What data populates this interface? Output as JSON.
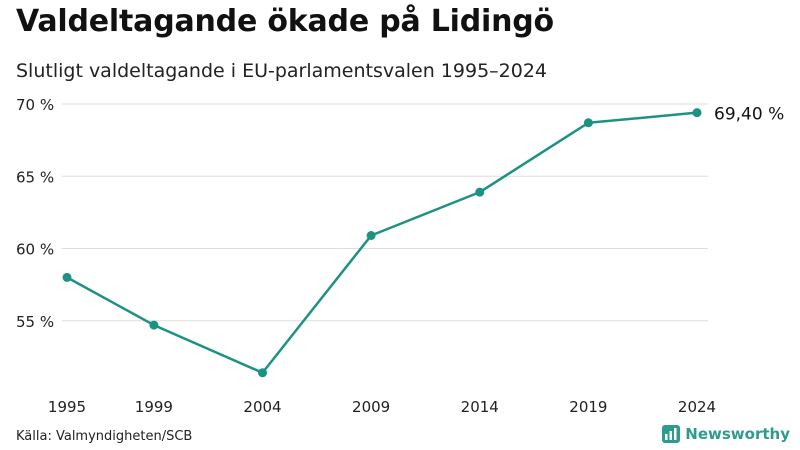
{
  "title": "Valdeltagande ökade på Lidingö",
  "subtitle": "Slutligt valdeltagande i EU-parlamentsvalen 1995–2024",
  "source": "Källa: Valmyndigheten/SCB",
  "brand": {
    "name": "Newsworthy",
    "icon": "newsworthy-logo-icon"
  },
  "colors": {
    "line": "#1d9282",
    "grid": "#dddddd",
    "brand": "#2e9c8c"
  },
  "chart_data": {
    "type": "line",
    "title": "Valdeltagande ökade på Lidingö",
    "subtitle": "Slutligt valdeltagande i EU-parlamentsvalen 1995–2024",
    "x": [
      1995,
      1999,
      2004,
      2009,
      2014,
      2019,
      2024
    ],
    "x_tick_labels": [
      "1995",
      "1999",
      "2004",
      "2009",
      "2014",
      "2019",
      "2024"
    ],
    "series": [
      {
        "name": "Valdeltagande",
        "values": [
          58.0,
          54.7,
          51.4,
          60.9,
          63.9,
          68.7,
          69.4
        ]
      }
    ],
    "y_ticks": [
      55,
      60,
      65,
      70
    ],
    "y_tick_labels": [
      "55 %",
      "60 %",
      "65 %",
      "70 %"
    ],
    "ylim": [
      50,
      70
    ],
    "xlim": [
      1995,
      2024
    ],
    "end_label": "69,40 %",
    "grid": true,
    "legend": "none"
  }
}
